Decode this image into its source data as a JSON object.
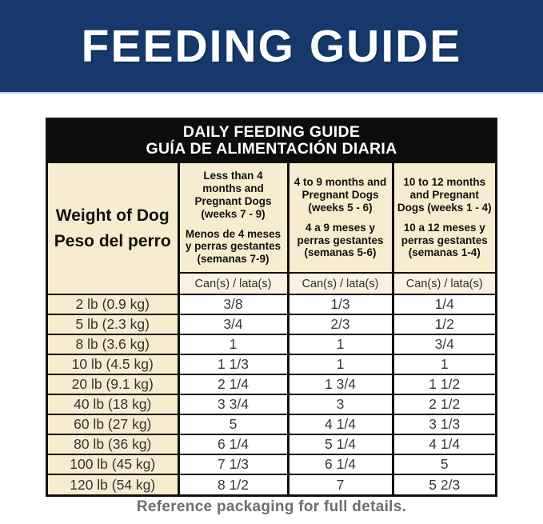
{
  "banner": {
    "title": "FEEDING GUIDE",
    "bg_color": "#16386b",
    "text_color": "#ffffff"
  },
  "table": {
    "title_line1": "DAILY FEEDING GUIDE",
    "title_line2": "GUÍA DE ALIMENTACIÓN DIARIA",
    "title_bg_color": "#0d0d0d",
    "header_bg_color": "#f8ecd0",
    "unit_row_bg_color": "#faf2df",
    "weight_header": {
      "en": "Weight of Dog",
      "es": "Peso del perro"
    },
    "columns": [
      {
        "en": "Less than 4 months and Pregnant Dogs (weeks 7 - 9)",
        "es": "Menos de 4 meses y perras gestantes (semanas 7-9)"
      },
      {
        "en": "4 to 9 months and Pregnant Dogs (weeks 5 - 6)",
        "es": "4 a 9 meses y perras gestantes (semanas 5-6)"
      },
      {
        "en": "10 to 12 months and Pregnant Dogs (weeks 1 - 4)",
        "es": "10 a 12 meses y perras gestantes (semanas 1-4)"
      }
    ],
    "unit_label": "Can(s) / lata(s)",
    "rows": [
      {
        "weight": "2 lb (0.9 kg)",
        "values": [
          "3/8",
          "1/3",
          "1/4"
        ]
      },
      {
        "weight": "5 lb (2.3 kg)",
        "values": [
          "3/4",
          "2/3",
          "1/2"
        ]
      },
      {
        "weight": "8 lb (3.6 kg)",
        "values": [
          "1",
          "1",
          "3/4"
        ]
      },
      {
        "weight": "10 lb (4.5 kg)",
        "values": [
          "1 1/3",
          "1",
          "1"
        ]
      },
      {
        "weight": "20 lb (9.1 kg)",
        "values": [
          "2 1/4",
          "1 3/4",
          "1 1/2"
        ]
      },
      {
        "weight": "40 lb (18 kg)",
        "values": [
          "3 3/4",
          "3",
          "2 1/2"
        ]
      },
      {
        "weight": "60 lb (27 kg)",
        "values": [
          "5",
          "4 1/4",
          "3 1/3"
        ]
      },
      {
        "weight": "80 lb (36 kg)",
        "values": [
          "6 1/4",
          "5 1/4",
          "4 1/4"
        ]
      },
      {
        "weight": "100 lb (45 kg)",
        "values": [
          "7 1/3",
          "6 1/4",
          "5"
        ]
      },
      {
        "weight": "120 lb (54 kg)",
        "values": [
          "8 1/2",
          "7",
          "5 2/3"
        ]
      }
    ]
  },
  "footnote": "Reference packaging for full details."
}
